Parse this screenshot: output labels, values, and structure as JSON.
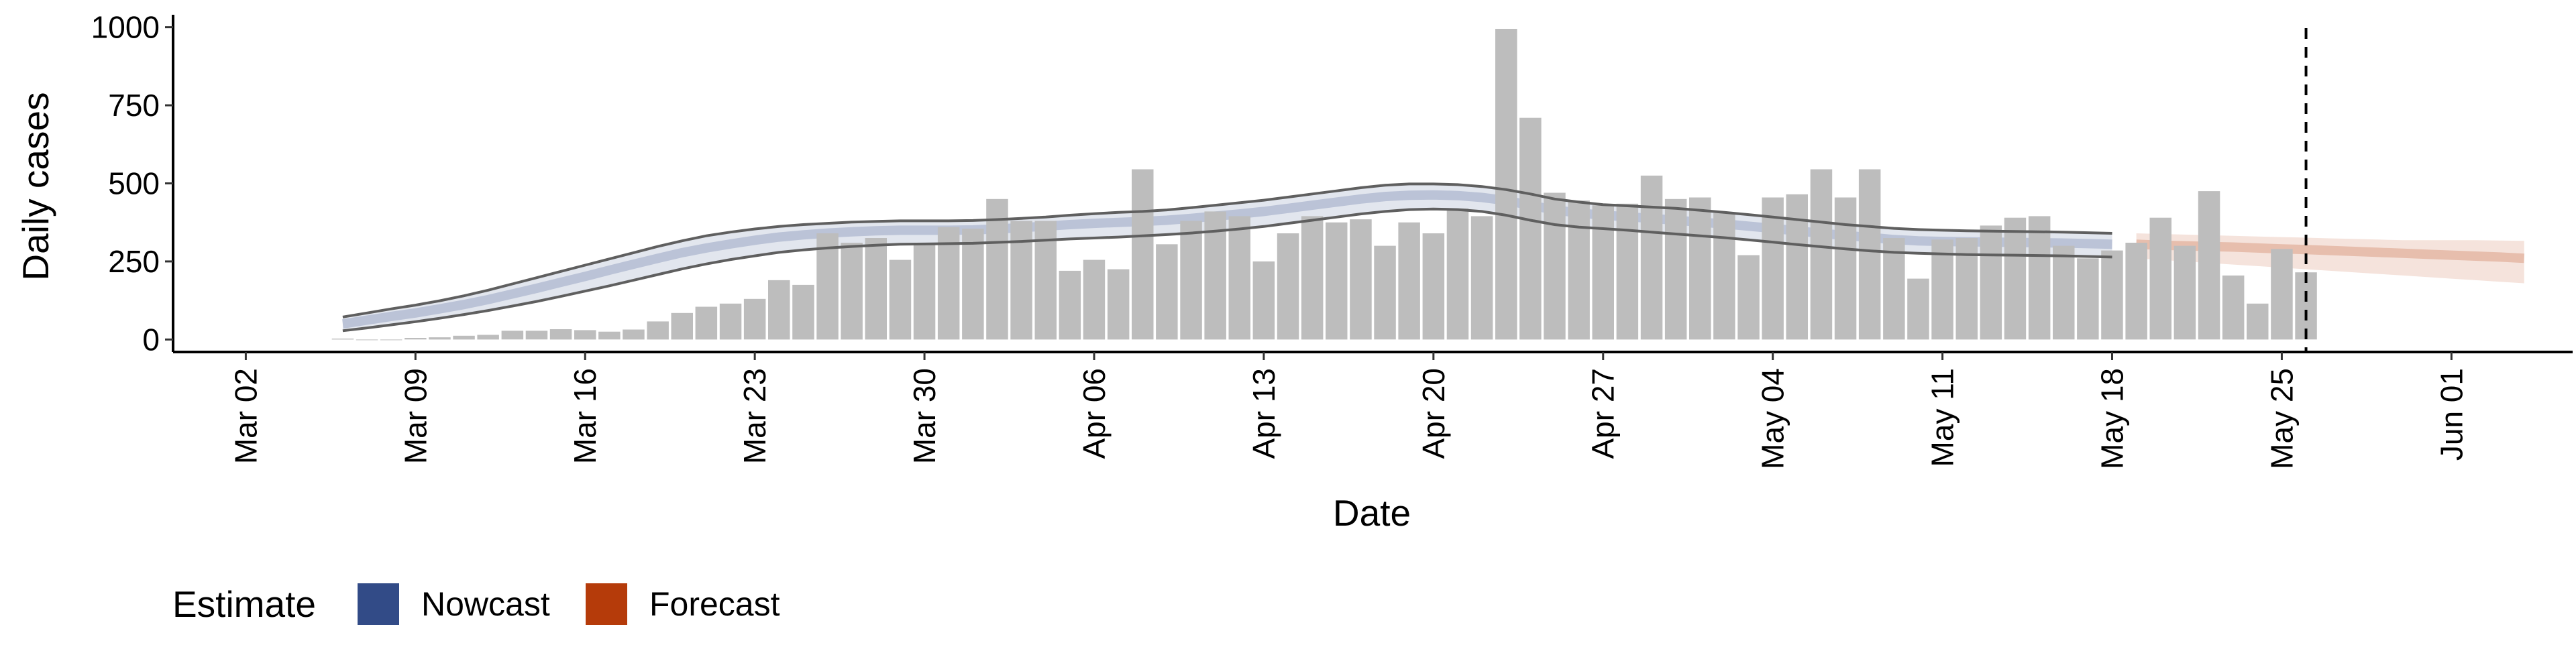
{
  "chart_data": {
    "type": "bar",
    "xlabel": "Date",
    "ylabel": "Daily cases",
    "x_tick_labels": [
      "Mar 02",
      "Mar 09",
      "Mar 16",
      "Mar 23",
      "Mar 30",
      "Apr 06",
      "Apr 13",
      "Apr 20",
      "Apr 27",
      "May 04",
      "May 11",
      "May 18",
      "May 25",
      "Jun 01"
    ],
    "y_tick_labels": [
      "0",
      "250",
      "500",
      "750",
      "1000"
    ],
    "x_range": [
      "2020-02-28",
      "2020-06-06"
    ],
    "ylim": [
      -40,
      1040
    ],
    "grid": false,
    "legend": {
      "title": "Estimate",
      "position": "bottom-left",
      "entries": [
        {
          "label": "Nowcast",
          "color": "#324b87"
        },
        {
          "label": "Forecast",
          "color": "#b53b0a"
        }
      ]
    },
    "cutoff_date": "2020-05-26",
    "bar_color": "#bdbdbd",
    "daily_cases": {
      "start_date": "2020-03-06",
      "values": [
        3,
        0,
        0,
        5,
        7,
        12,
        15,
        28,
        28,
        33,
        30,
        25,
        32,
        58,
        85,
        105,
        115,
        130,
        190,
        175,
        340,
        310,
        325,
        255,
        310,
        360,
        355,
        450,
        380,
        380,
        220,
        255,
        225,
        545,
        305,
        380,
        410,
        395,
        250,
        340,
        395,
        375,
        385,
        300,
        375,
        340,
        420,
        395,
        995,
        710,
        470,
        445,
        430,
        435,
        525,
        450,
        455,
        405,
        270,
        455,
        465,
        545,
        455,
        545,
        325,
        195,
        320,
        325,
        365,
        390,
        395,
        300,
        260,
        285,
        310,
        390,
        300,
        475,
        205,
        115,
        290,
        215
      ]
    },
    "nowcast": {
      "start_date": "2020-03-06",
      "color": "#324b87",
      "mid": [
        50,
        62,
        74,
        85,
        98,
        112,
        128,
        146,
        164,
        183,
        202,
        222,
        241,
        260,
        278,
        293,
        306,
        318,
        328,
        335,
        341,
        345,
        348,
        350,
        350,
        350,
        351,
        354,
        358,
        363,
        368,
        372,
        375,
        378,
        382,
        388,
        395,
        402,
        410,
        420,
        430,
        440,
        450,
        458,
        462,
        463,
        461,
        455,
        445,
        430,
        415,
        405,
        398,
        393,
        388,
        382,
        376,
        370,
        363,
        356,
        348,
        340,
        333,
        327,
        320,
        316,
        314,
        313,
        312,
        311,
        310,
        309,
        307,
        305
      ],
      "lower": [
        28,
        37,
        47,
        57,
        68,
        80,
        93,
        107,
        122,
        138,
        155,
        172,
        190,
        208,
        226,
        242,
        256,
        268,
        279,
        287,
        293,
        298,
        302,
        305,
        306,
        307,
        308,
        311,
        314,
        318,
        322,
        325,
        328,
        332,
        336,
        341,
        347,
        354,
        362,
        372,
        382,
        392,
        402,
        410,
        416,
        418,
        416,
        410,
        398,
        382,
        368,
        360,
        355,
        350,
        344,
        338,
        332,
        326,
        319,
        312,
        304,
        297,
        290,
        284,
        279,
        276,
        274,
        272,
        271,
        270,
        269,
        268,
        266,
        264
      ],
      "upper": [
        72,
        85,
        98,
        110,
        124,
        140,
        158,
        178,
        198,
        218,
        238,
        258,
        278,
        298,
        316,
        332,
        344,
        354,
        362,
        368,
        372,
        376,
        378,
        380,
        380,
        380,
        381,
        384,
        388,
        392,
        398,
        403,
        407,
        410,
        415,
        422,
        430,
        438,
        446,
        456,
        466,
        476,
        486,
        494,
        498,
        498,
        496,
        490,
        480,
        466,
        450,
        440,
        432,
        428,
        424,
        420,
        414,
        407,
        400,
        392,
        384,
        376,
        368,
        362,
        356,
        352,
        350,
        348,
        347,
        346,
        345,
        344,
        342,
        340
      ]
    },
    "forecast": {
      "start_date": "2020-05-19",
      "color": "#b53b0a",
      "mid": [
        305,
        302,
        300,
        298,
        296,
        293,
        290,
        288,
        285,
        282,
        279,
        276,
        273,
        270,
        267,
        264,
        260
      ],
      "lower": [
        260,
        255,
        250,
        245,
        240,
        235,
        230,
        225,
        220,
        215,
        210,
        205,
        200,
        195,
        190,
        185,
        180
      ],
      "upper": [
        340,
        338,
        336,
        334,
        332,
        330,
        328,
        326,
        324,
        322,
        320,
        318,
        318,
        318,
        318,
        317,
        316
      ]
    }
  }
}
